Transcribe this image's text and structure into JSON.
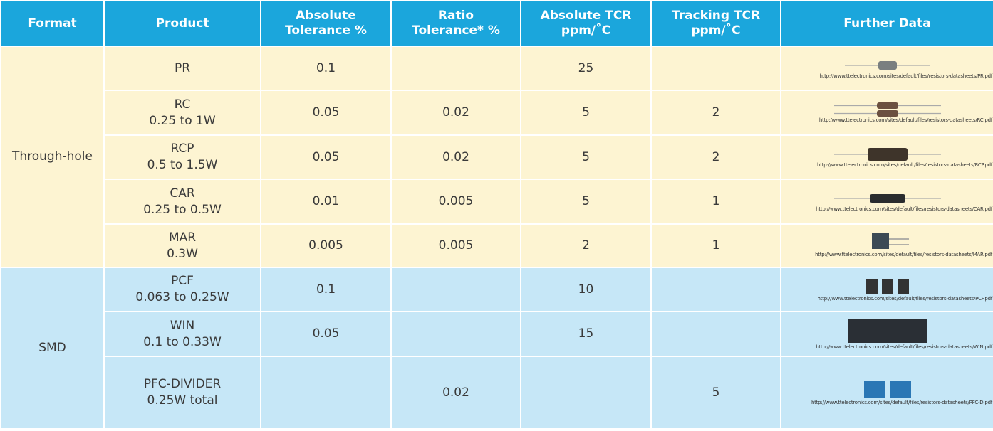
{
  "table": {
    "header": [
      [
        "Format"
      ],
      [
        "Product"
      ],
      [
        "Absolute",
        "Tolerance %"
      ],
      [
        "Ratio",
        "Tolerance* %"
      ],
      [
        "Absolute TCR",
        "ppm/˚C"
      ],
      [
        "Tracking TCR",
        "ppm/˚C"
      ],
      [
        "Further Data"
      ]
    ],
    "groups": [
      {
        "format": "Through-hole",
        "rows": [
          {
            "product": [
              "PR"
            ],
            "abs_tol": "0.1",
            "ratio_tol": null,
            "abs_tcr": "25",
            "track_tcr": null,
            "link": "http://www.ttelectronics.com/sites/default/files/resistors-datasheets/PR.pdf"
          },
          {
            "product": [
              "RC",
              "0.25 to 1W"
            ],
            "abs_tol": "0.05",
            "ratio_tol": "0.02",
            "abs_tcr": "5",
            "track_tcr": "2",
            "link": "http://www.ttelectronics.com/sites/default/files/resistors-datasheets/RC.pdf"
          },
          {
            "product": [
              "RCP",
              "0.5 to 1.5W"
            ],
            "abs_tol": "0.05",
            "ratio_tol": "0.02",
            "abs_tcr": "5",
            "track_tcr": "2",
            "link": "http://www.ttelectronics.com/sites/default/files/resistors-datasheets/RCP.pdf"
          },
          {
            "product": [
              "CAR",
              "0.25 to 0.5W"
            ],
            "abs_tol": "0.01",
            "ratio_tol": "0.005",
            "abs_tcr": "5",
            "track_tcr": "1",
            "link": "http://www.ttelectronics.com/sites/default/files/resistors-datasheets/CAR.pdf"
          },
          {
            "product": [
              "MAR",
              "0.3W"
            ],
            "abs_tol": "0.005",
            "ratio_tol": "0.005",
            "abs_tcr": "2",
            "track_tcr": "1",
            "link": "http://www.ttelectronics.com/sites/default/files/resistors-datasheets/MAR.pdf"
          }
        ]
      },
      {
        "format": "SMD",
        "rows": [
          {
            "product": [
              "PCF",
              "0.063 to 0.25W"
            ],
            "abs_tol": "0.1",
            "ratio_tol": null,
            "abs_tcr": "10",
            "track_tcr": null,
            "link": "http://www.ttelectronics.com/sites/default/files/resistors-datasheets/PCF.pdf"
          },
          {
            "product": [
              "WIN",
              "0.1 to 0.33W"
            ],
            "abs_tol": "0.05",
            "ratio_tol": null,
            "abs_tcr": "15",
            "track_tcr": null,
            "link": "http://www.ttelectronics.com/sites/default/files/resistors-datasheets/WIN.pdf"
          },
          {
            "product": [
              "PFC-DIVIDER",
              "0.25W total"
            ],
            "abs_tol": null,
            "ratio_tol": "0.02",
            "abs_tcr": null,
            "track_tcr": "5",
            "link": "http://www.ttelectronics.com/sites/default/files/resistors-datasheets/PFC-D.pdf"
          }
        ]
      }
    ]
  }
}
